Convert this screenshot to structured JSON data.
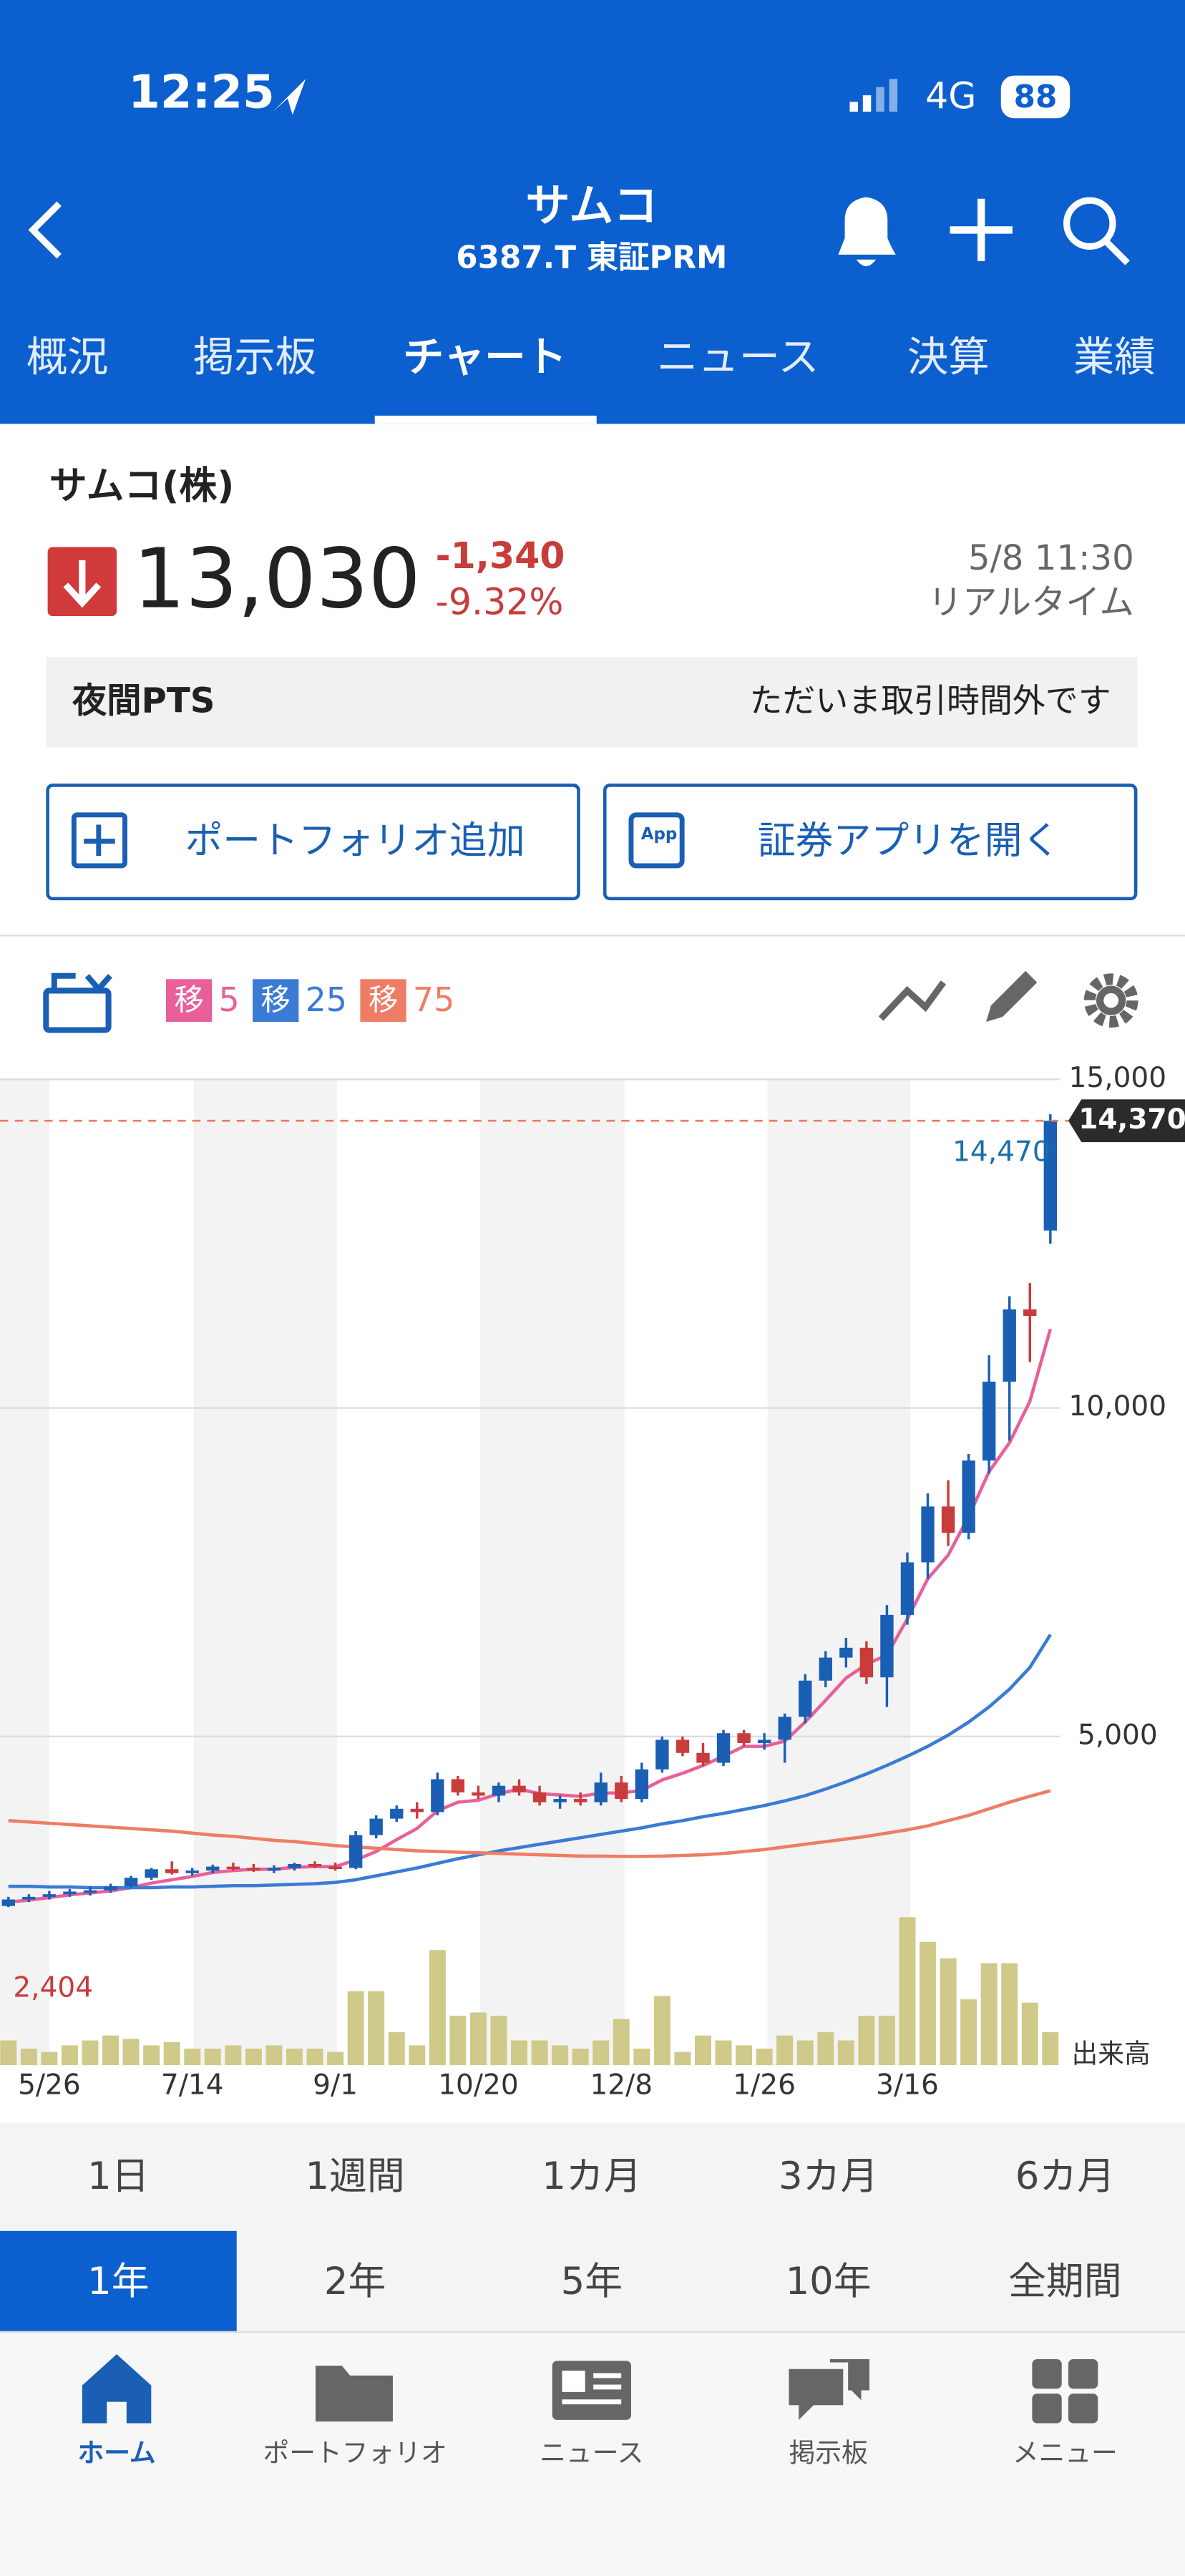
{
  "status_bar": {
    "time": "12:25",
    "network": "4G",
    "battery": "88"
  },
  "header": {
    "title": "サムコ",
    "subtitle": "6387.T 東証PRM"
  },
  "tabs": {
    "items": [
      "概況",
      "掲示板",
      "チャート",
      "ニュース",
      "決算",
      "業績"
    ],
    "active": 2
  },
  "quote": {
    "name": "サムコ(株)",
    "price": "13,030",
    "change": "-1,340",
    "change_pct": "-9.32%",
    "datetime": "5/8 11:30",
    "realtime": "リアルタイム"
  },
  "pts": {
    "label": "夜間PTS",
    "status": "ただいま取引時間外です"
  },
  "buttons": {
    "portfolio": "ポートフォリオ追加",
    "app_icon": "App",
    "open_app": "証券アプリを開く"
  },
  "ma_legend": [
    {
      "badge": "移",
      "period": 5,
      "color": "#e8609a"
    },
    {
      "badge": "移",
      "period": 25,
      "color": "#3a7bd5"
    },
    {
      "badge": "移",
      "period": 75,
      "color": "#ee7d66"
    }
  ],
  "chart": {
    "type": "candlestick",
    "ylim": [
      0,
      15000
    ],
    "yticks": [
      {
        "value": 5000,
        "label": "5,000"
      },
      {
        "value": 10000,
        "label": "10,000"
      },
      {
        "value": 15000,
        "label": "15,000"
      }
    ],
    "grid": true,
    "up_color": "#1a5fb4",
    "down_color": "#c83c3c",
    "categories": [
      null,
      null,
      "5/26",
      null,
      null,
      null,
      null,
      null,
      null,
      "7/14",
      null,
      null,
      null,
      null,
      null,
      null,
      "9/1",
      null,
      null,
      null,
      null,
      null,
      null,
      "10/20",
      null,
      null,
      null,
      null,
      null,
      null,
      "12/8",
      null,
      null,
      null,
      null,
      null,
      null,
      "1/26",
      null,
      null,
      null,
      null,
      null,
      null,
      "3/16",
      null,
      null,
      null,
      null,
      null,
      null,
      null
    ],
    "open": [
      2420,
      2520,
      2560,
      2600,
      2640,
      2660,
      2720,
      2850,
      2980,
      2920,
      2960,
      3020,
      3000,
      2960,
      3000,
      3060,
      3020,
      3000,
      3500,
      3750,
      3900,
      3850,
      4350,
      4150,
      4100,
      4250,
      4150,
      4000,
      4050,
      4000,
      4300,
      4050,
      4500,
      4950,
      4750,
      4600,
      5050,
      4900,
      4950,
      5300,
      5850,
      6200,
      6350,
      5900,
      6850,
      7650,
      8500,
      8100,
      9200,
      10400,
      11500,
      12700
    ],
    "high": [
      2560,
      2600,
      2650,
      2680,
      2720,
      2760,
      2880,
      3000,
      3100,
      3000,
      3050,
      3080,
      3060,
      3040,
      3080,
      3100,
      3080,
      3560,
      3800,
      3950,
      4000,
      4450,
      4400,
      4250,
      4300,
      4350,
      4250,
      4100,
      4150,
      4450,
      4400,
      4600,
      5000,
      5000,
      4900,
      5100,
      5100,
      5050,
      5350,
      5950,
      6300,
      6500,
      6450,
      7000,
      7800,
      8700,
      8900,
      9300,
      10800,
      11700,
      11900,
      14470
    ],
    "low": [
      2404,
      2480,
      2520,
      2560,
      2580,
      2620,
      2700,
      2820,
      2900,
      2880,
      2920,
      2960,
      2940,
      2920,
      2960,
      3000,
      2960,
      2980,
      3450,
      3700,
      3750,
      3800,
      4100,
      4050,
      4000,
      4100,
      3950,
      3900,
      3950,
      3950,
      4000,
      4000,
      4450,
      4700,
      4550,
      4550,
      4850,
      4800,
      4600,
      5200,
      5750,
      6050,
      5800,
      5450,
      6700,
      7400,
      7900,
      8000,
      9000,
      9500,
      10700,
      12500
    ],
    "close": [
      2520,
      2560,
      2600,
      2640,
      2660,
      2720,
      2850,
      2980,
      2920,
      2960,
      3020,
      3000,
      2960,
      3000,
      3060,
      3020,
      3000,
      3500,
      3750,
      3900,
      3850,
      4350,
      4150,
      4100,
      4250,
      4150,
      4000,
      4050,
      4000,
      4300,
      4050,
      4500,
      4950,
      4750,
      4600,
      5050,
      4900,
      4950,
      5300,
      5850,
      6200,
      6350,
      5900,
      6850,
      7650,
      8500,
      8100,
      9200,
      10400,
      11500,
      11400,
      14370
    ],
    "moving_averages": [
      {
        "color": "#e8609a",
        "values": [
          2480,
          2510,
          2550,
          2590,
          2620,
          2650,
          2700,
          2770,
          2820,
          2870,
          2930,
          2960,
          2980,
          2980,
          3010,
          3020,
          3020,
          3120,
          3250,
          3430,
          3600,
          3870,
          4000,
          4030,
          4130,
          4200,
          4130,
          4110,
          4090,
          4140,
          4140,
          4180,
          4340,
          4440,
          4560,
          4700,
          4850,
          4850,
          4930,
          5220,
          5550,
          5890,
          6100,
          6240,
          6790,
          7400,
          7760,
          8350,
          9030,
          9470,
          10100,
          11200
        ]
      },
      {
        "color": "#3a7bd5",
        "values": [
          2720,
          2720,
          2710,
          2710,
          2700,
          2700,
          2700,
          2700,
          2710,
          2710,
          2720,
          2730,
          2730,
          2740,
          2750,
          2760,
          2780,
          2820,
          2880,
          2940,
          3000,
          3070,
          3140,
          3200,
          3260,
          3310,
          3360,
          3410,
          3460,
          3510,
          3560,
          3610,
          3670,
          3720,
          3780,
          3830,
          3890,
          3950,
          4020,
          4100,
          4200,
          4310,
          4430,
          4560,
          4700,
          4850,
          5020,
          5220,
          5450,
          5720,
          6050,
          6550
        ]
      },
      {
        "color": "#ee7d66",
        "values": [
          3720,
          3700,
          3680,
          3660,
          3640,
          3620,
          3600,
          3580,
          3560,
          3530,
          3500,
          3480,
          3450,
          3420,
          3400,
          3370,
          3340,
          3320,
          3300,
          3280,
          3260,
          3250,
          3240,
          3230,
          3220,
          3210,
          3200,
          3190,
          3180,
          3180,
          3175,
          3175,
          3180,
          3190,
          3200,
          3220,
          3250,
          3280,
          3320,
          3360,
          3400,
          3440,
          3480,
          3530,
          3580,
          3640,
          3720,
          3800,
          3900,
          4000,
          4090,
          4175
        ]
      }
    ],
    "volume": {
      "label": "出来高",
      "color": "#cfc98a",
      "values": [
        15,
        10,
        8,
        12,
        15,
        18,
        16,
        12,
        14,
        10,
        10,
        12,
        10,
        12,
        10,
        10,
        8,
        45,
        45,
        20,
        12,
        70,
        30,
        32,
        30,
        15,
        15,
        12,
        10,
        15,
        28,
        10,
        42,
        8,
        18,
        15,
        12,
        10,
        18,
        15,
        20,
        15,
        30,
        30,
        90,
        75,
        65,
        40,
        62,
        62,
        38,
        20
      ]
    },
    "high_label": {
      "value": 14470,
      "label": "14,470"
    },
    "low_label": {
      "value": 2404,
      "label": "2,404"
    },
    "last_price": {
      "value": 14370,
      "label": "14,370"
    }
  },
  "periods": {
    "rows": [
      [
        "1日",
        "1週間",
        "1カ月",
        "3カ月",
        "6カ月"
      ],
      [
        "1年",
        "2年",
        "5年",
        "10年",
        "全期間"
      ]
    ],
    "active_row": 1,
    "active": 0
  },
  "nav": {
    "items": [
      "ホーム",
      "ポートフォリオ",
      "ニュース",
      "掲示板",
      "メニュー"
    ],
    "active": 0
  }
}
